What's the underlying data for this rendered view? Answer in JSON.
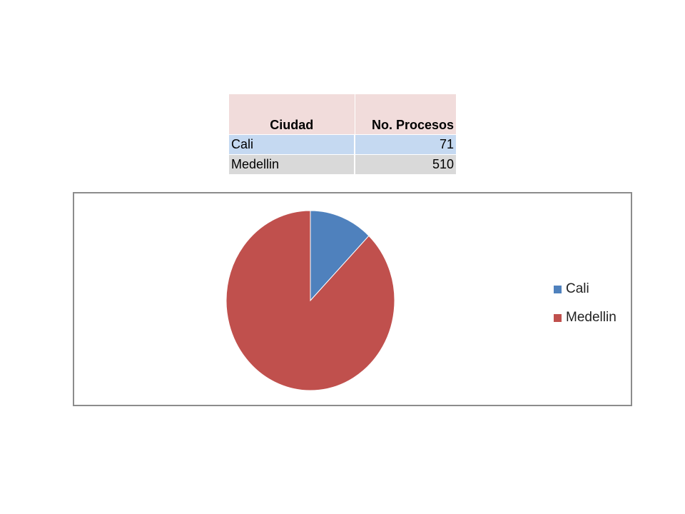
{
  "table": {
    "headers": [
      "Ciudad",
      "No. Procesos"
    ],
    "rows": [
      {
        "ciudad": "Cali",
        "procesos": "71"
      },
      {
        "ciudad": "Medellin",
        "procesos": "510"
      }
    ]
  },
  "chart_data": {
    "type": "pie",
    "categories": [
      "Cali",
      "Medellin"
    ],
    "values": [
      71,
      510
    ],
    "colors": [
      "#4f81bd",
      "#c0504d"
    ],
    "legend_position": "right",
    "start": "top",
    "direction": "clockwise"
  }
}
